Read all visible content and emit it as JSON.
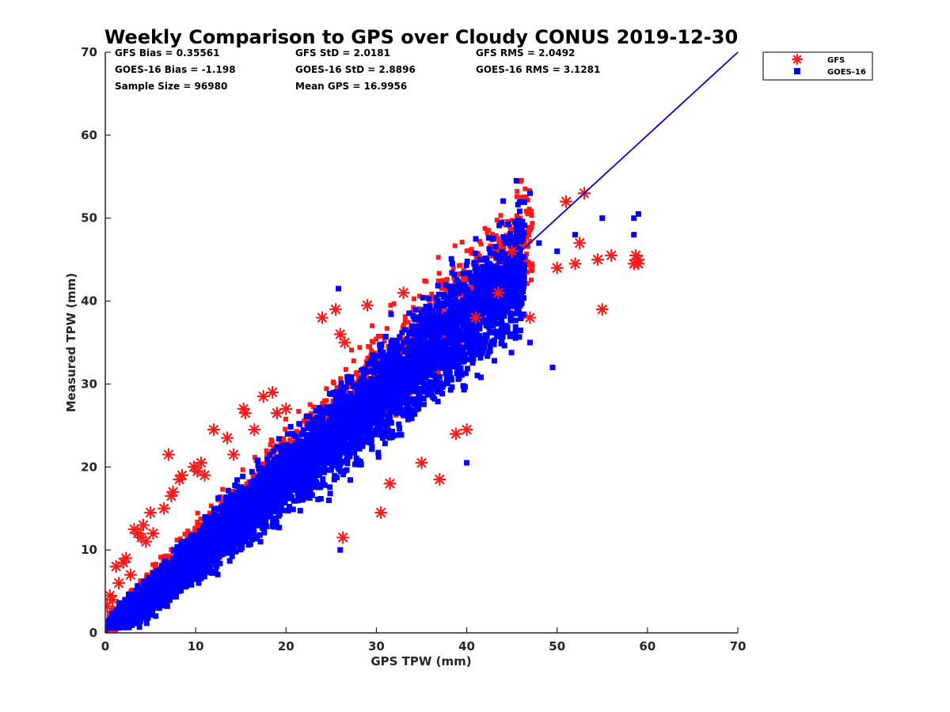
{
  "chart_data": {
    "type": "scatter",
    "title": "Weekly Comparison to GPS over Cloudy CONUS 2019-12-30",
    "xlabel": "GPS TPW (mm)",
    "ylabel": "Measured TPW (mm)",
    "xlim": [
      0,
      70
    ],
    "ylim": [
      0,
      70
    ],
    "xticks": [
      "0",
      "10",
      "20",
      "30",
      "40",
      "50",
      "60",
      "70"
    ],
    "yticks": [
      "0",
      "10",
      "20",
      "30",
      "40",
      "50",
      "60",
      "70"
    ],
    "grid": false,
    "legend_position": "top-right",
    "stats": [
      [
        "GFS Bias = 0.35561",
        "GFS StD = 2.0181",
        "GFS RMS = 2.0492"
      ],
      [
        "GOES-16 Bias = -1.198",
        "GOES-16 StD = 2.8896",
        "GOES-16 RMS = 3.1281"
      ],
      [
        "Sample Size = 96980",
        "Mean GPS = 16.9956",
        ""
      ]
    ],
    "reference_line": {
      "x": [
        0,
        70
      ],
      "y": [
        0,
        70
      ],
      "color": "#0000e0"
    },
    "series": [
      {
        "name": "GFS",
        "marker": "asterisk",
        "color": "#ff1a1a",
        "x": [
          0.2,
          0.5,
          0.8,
          1.2,
          1.5,
          2.0,
          2.3,
          2.8,
          3.2,
          3.6,
          4.0,
          4.2,
          4.5,
          5.0,
          5.3,
          6.5,
          7.0,
          7.3,
          7.5,
          8.2,
          8.5,
          9.8,
          10.2,
          10.6,
          11.0,
          12.0,
          13.5,
          14.2,
          15.3,
          15.5,
          16.5,
          17.5,
          18.5,
          19.0,
          20.0,
          24.0,
          25.5,
          26.0,
          26.3,
          26.5,
          29.0,
          30.5,
          31.5,
          33.0,
          35.0,
          37.0,
          38.8,
          40.0,
          41.0,
          43.5,
          45.0,
          47.0,
          50.0,
          51.0,
          52.0,
          52.5,
          53.0,
          54.5,
          55.0,
          56.0,
          58.5,
          59.0,
          59.0,
          58.7
        ],
        "y": [
          3.2,
          4.5,
          4.0,
          8.0,
          6.0,
          8.5,
          9.0,
          7.0,
          12.5,
          12.0,
          11.5,
          13.0,
          11.0,
          14.5,
          12.0,
          15.0,
          21.5,
          16.5,
          17.0,
          18.5,
          19.0,
          20.0,
          19.5,
          20.5,
          19.0,
          24.5,
          23.5,
          21.5,
          27.0,
          26.5,
          24.5,
          28.5,
          29.0,
          26.5,
          27.0,
          38.0,
          39.0,
          36.0,
          11.5,
          35.0,
          39.5,
          14.5,
          18.0,
          41.0,
          20.5,
          18.5,
          24.0,
          24.5,
          38.0,
          41.0,
          46.0,
          38.0,
          44.0,
          52.0,
          44.5,
          47.0,
          53.0,
          45.0,
          39.0,
          45.5,
          44.5,
          45.0,
          44.5,
          45.5
        ]
      },
      {
        "name": "GOES-16",
        "marker": "square",
        "color": "#0000ff",
        "x": [
          0.5,
          1.0,
          1.5,
          2.0,
          3.0,
          4.0,
          5.0,
          6.0,
          8.0,
          10.0,
          12.0,
          15.0,
          18.0,
          20.0,
          22.0,
          25.0,
          28.0,
          30.0,
          32.0,
          35.0,
          38.0,
          40.0,
          42.0,
          44.0,
          45.5,
          47.0,
          48.0,
          50.0,
          52.0,
          55.0,
          58.5,
          58.5,
          59.0,
          26.0,
          40.0,
          49.5,
          41.0,
          47.0,
          25.8
        ],
        "y": [
          1.0,
          2.0,
          3.0,
          2.5,
          4.0,
          5.0,
          6.0,
          7.0,
          9.0,
          11.0,
          13.0,
          16.0,
          19.0,
          21.0,
          23.0,
          26.0,
          28.0,
          30.0,
          32.0,
          34.0,
          36.0,
          38.0,
          40.0,
          42.0,
          54.5,
          53.0,
          47.0,
          46.0,
          48.0,
          50.0,
          48.0,
          50.0,
          50.5,
          10.0,
          20.5,
          32.0,
          47.5,
          35.0,
          41.5
        ]
      }
    ]
  }
}
